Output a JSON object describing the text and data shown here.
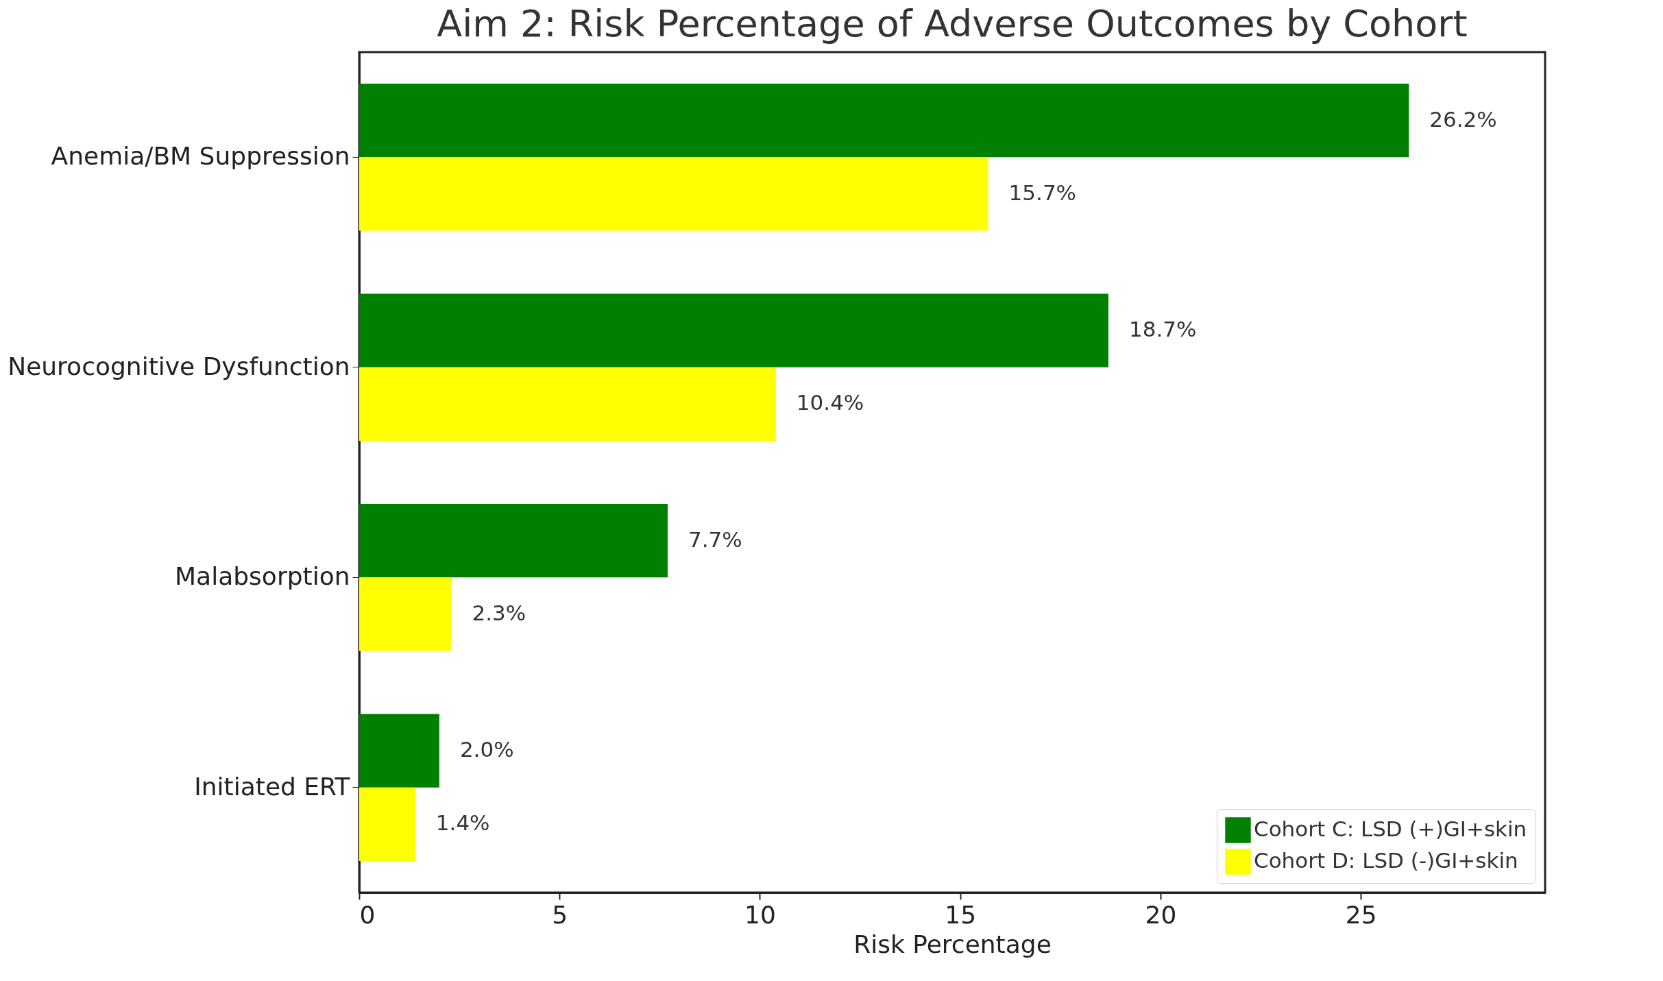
{
  "chart_data": {
    "type": "bar",
    "orientation": "horizontal",
    "title": "Aim 2: Risk Percentage of Adverse Outcomes by Cohort",
    "xlabel": "Risk Percentage",
    "categories": [
      "Anemia/BM Suppression",
      "Neurocognitive Dysfunction",
      "Malabsorption",
      "Initiated ERT"
    ],
    "series": [
      {
        "name": "Cohort C: LSD (+)GI+skin",
        "color": "#008000",
        "values": [
          26.2,
          18.7,
          7.7,
          2.0
        ],
        "value_labels": [
          "26.2%",
          "18.7%",
          "7.7%",
          "2.0%"
        ]
      },
      {
        "name": "Cohort D: LSD (-)GI+skin",
        "color": "#ffff00",
        "values": [
          15.7,
          10.4,
          2.3,
          1.4
        ],
        "value_labels": [
          "15.7%",
          "10.4%",
          "2.3%",
          "1.4%"
        ]
      }
    ],
    "xlim": [
      0,
      29.6
    ],
    "xticks": [
      0,
      5,
      10,
      15,
      20,
      25
    ],
    "grid": false,
    "legend": "bottom right"
  }
}
